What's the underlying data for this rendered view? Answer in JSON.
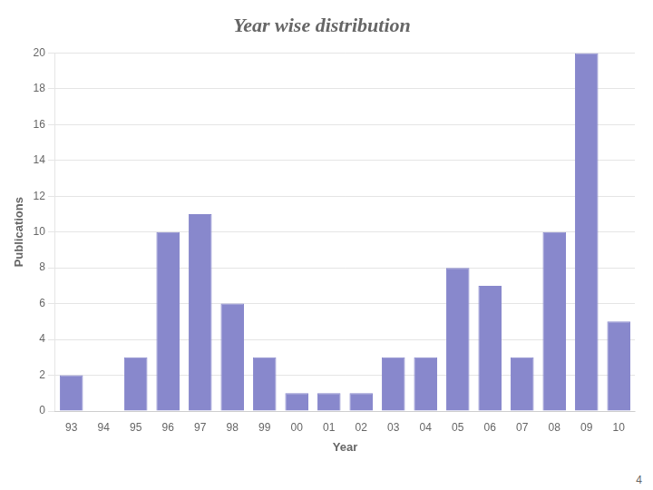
{
  "chart_data": {
    "type": "bar",
    "title": "Year wise distribution",
    "xlabel": "Year",
    "ylabel": "Publications",
    "categories": [
      "93",
      "94",
      "95",
      "96",
      "97",
      "98",
      "99",
      "00",
      "01",
      "02",
      "03",
      "04",
      "05",
      "06",
      "07",
      "08",
      "09",
      "10"
    ],
    "values": [
      2,
      0,
      3,
      10,
      11,
      6,
      3,
      1,
      1,
      1,
      3,
      3,
      8,
      7,
      3,
      10,
      20,
      5
    ],
    "color": "#8888cc",
    "ylim": [
      0,
      20
    ],
    "yticks": [
      0,
      2,
      4,
      6,
      8,
      10,
      12,
      14,
      16,
      18,
      20
    ],
    "grid": true,
    "annotations": [
      "4"
    ]
  }
}
